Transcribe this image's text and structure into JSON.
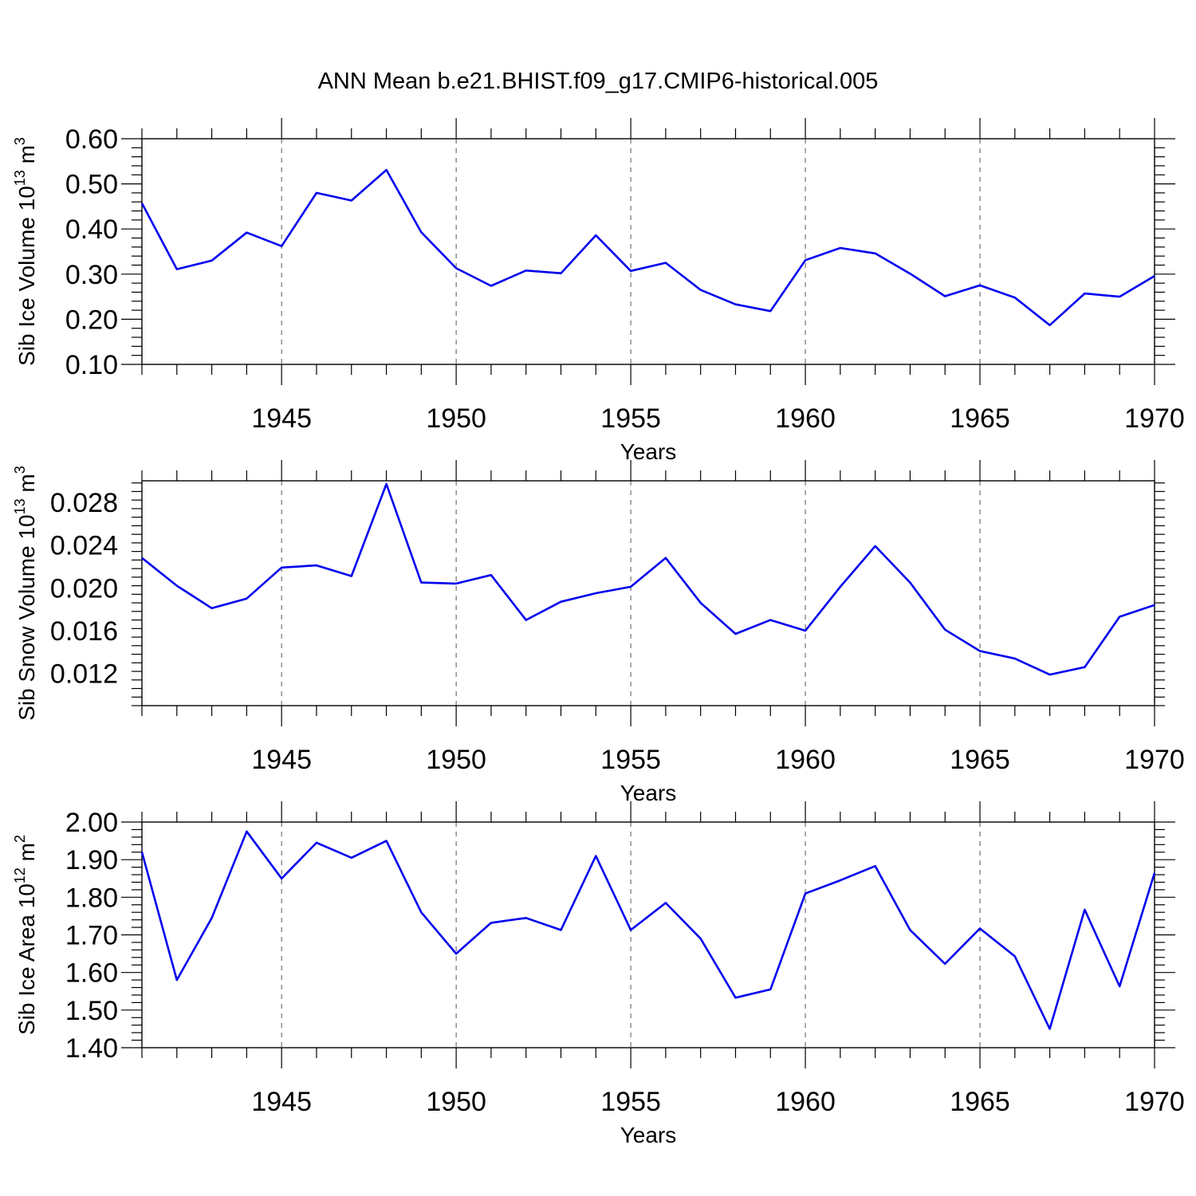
{
  "title": "ANN Mean b.e21.BHIST.f09_g17.CMIP6-historical.005",
  "line_color": "#0000ee",
  "chart_data": [
    {
      "type": "line",
      "ylabel_main": "Sib Ice Volume 10",
      "ylabel_exp": "13",
      "ylabel_unit": " m",
      "ylabel_unit_exp": "3",
      "xlabel": "Years",
      "xlim": [
        1941,
        1970
      ],
      "ylim": [
        0.1,
        0.6
      ],
      "yticks": [
        0.1,
        0.2,
        0.3,
        0.4,
        0.5,
        0.6
      ],
      "ytick_labels": [
        "0.10",
        "0.20",
        "0.30",
        "0.40",
        "0.50",
        "0.60"
      ],
      "xticks": [
        1945,
        1950,
        1955,
        1960,
        1965,
        1970
      ],
      "xtick_labels": [
        "1945",
        "1950",
        "1955",
        "1960",
        "1965",
        "1970"
      ],
      "x": [
        1941,
        1942,
        1943,
        1944,
        1945,
        1946,
        1947,
        1948,
        1949,
        1950,
        1951,
        1952,
        1953,
        1954,
        1955,
        1956,
        1957,
        1958,
        1959,
        1960,
        1961,
        1962,
        1963,
        1964,
        1965,
        1966,
        1967,
        1968,
        1969,
        1970
      ],
      "values": [
        0.457,
        0.311,
        0.33,
        0.392,
        0.362,
        0.48,
        0.463,
        0.531,
        0.393,
        0.313,
        0.274,
        0.308,
        0.302,
        0.386,
        0.307,
        0.325,
        0.265,
        0.233,
        0.218,
        0.331,
        0.358,
        0.346,
        0.301,
        0.251,
        0.275,
        0.248,
        0.187,
        0.257,
        0.25,
        0.296
      ]
    },
    {
      "type": "line",
      "ylabel_main": "Sib Snow Volume 10",
      "ylabel_exp": "13",
      "ylabel_unit": " m",
      "ylabel_unit_exp": "3",
      "xlabel": "Years",
      "xlim": [
        1941,
        1970
      ],
      "ylim": [
        0.009,
        0.03
      ],
      "yticks": [
        0.012,
        0.016,
        0.02,
        0.024,
        0.028
      ],
      "ytick_labels": [
        "0.012",
        "0.016",
        "0.020",
        "0.024",
        "0.028"
      ],
      "xticks": [
        1945,
        1950,
        1955,
        1960,
        1965,
        1970
      ],
      "xtick_labels": [
        "1945",
        "1950",
        "1955",
        "1960",
        "1965",
        "1970"
      ],
      "x": [
        1941,
        1942,
        1943,
        1944,
        1945,
        1946,
        1947,
        1948,
        1949,
        1950,
        1951,
        1952,
        1953,
        1954,
        1955,
        1956,
        1957,
        1958,
        1959,
        1960,
        1961,
        1962,
        1963,
        1964,
        1965,
        1966,
        1967,
        1968,
        1969,
        1970
      ],
      "values": [
        0.0228,
        0.0202,
        0.0181,
        0.019,
        0.0219,
        0.0221,
        0.0211,
        0.0297,
        0.0205,
        0.0204,
        0.0212,
        0.017,
        0.0187,
        0.0195,
        0.0201,
        0.0228,
        0.0186,
        0.0157,
        0.017,
        0.016,
        0.0201,
        0.0239,
        0.0205,
        0.0161,
        0.0141,
        0.0134,
        0.0119,
        0.0126,
        0.0173,
        0.0184
      ]
    },
    {
      "type": "line",
      "ylabel_main": "Sib Ice Area 10",
      "ylabel_exp": "12",
      "ylabel_unit": " m",
      "ylabel_unit_exp": "2",
      "xlabel": "Years",
      "xlim": [
        1941,
        1970
      ],
      "ylim": [
        1.4,
        2.0
      ],
      "yticks": [
        1.4,
        1.5,
        1.6,
        1.7,
        1.8,
        1.9,
        2.0
      ],
      "ytick_labels": [
        "1.40",
        "1.50",
        "1.60",
        "1.70",
        "1.80",
        "1.90",
        "2.00"
      ],
      "xticks": [
        1945,
        1950,
        1955,
        1960,
        1965,
        1970
      ],
      "xtick_labels": [
        "1945",
        "1950",
        "1955",
        "1960",
        "1965",
        "1970"
      ],
      "x": [
        1941,
        1942,
        1943,
        1944,
        1945,
        1946,
        1947,
        1948,
        1949,
        1950,
        1951,
        1952,
        1953,
        1954,
        1955,
        1956,
        1957,
        1958,
        1959,
        1960,
        1961,
        1962,
        1963,
        1964,
        1965,
        1966,
        1967,
        1968,
        1969,
        1970
      ],
      "values": [
        1.92,
        1.58,
        1.745,
        1.975,
        1.85,
        1.945,
        1.905,
        1.95,
        1.76,
        1.65,
        1.732,
        1.745,
        1.713,
        1.91,
        1.713,
        1.785,
        1.69,
        1.533,
        1.555,
        1.81,
        1.845,
        1.883,
        1.713,
        1.623,
        1.717,
        1.643,
        1.45,
        1.767,
        1.563,
        1.865
      ]
    }
  ]
}
